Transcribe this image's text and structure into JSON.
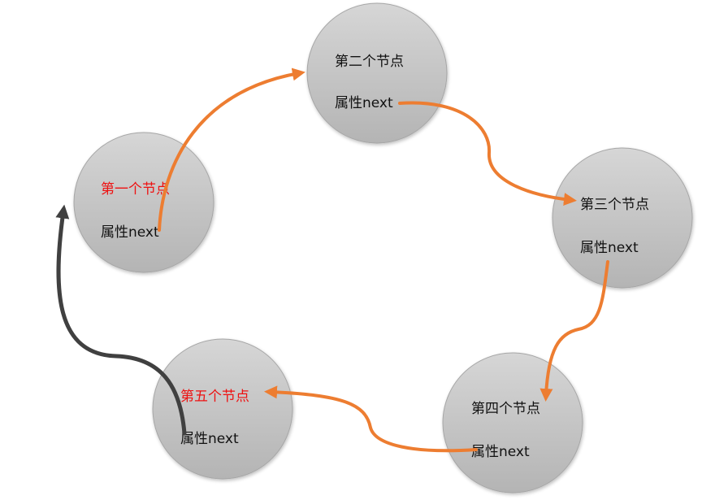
{
  "nodes": [
    {
      "title": "第一个节点",
      "attr": "属性next",
      "title_color": "#ee1111"
    },
    {
      "title": "第二个节点",
      "attr": "属性next",
      "title_color": "#111111"
    },
    {
      "title": "第三个节点",
      "attr": "属性next",
      "title_color": "#111111"
    },
    {
      "title": "第四个节点",
      "attr": "属性next",
      "title_color": "#111111"
    },
    {
      "title": "第五个节点",
      "attr": "属性next",
      "title_color": "#ee1111"
    }
  ],
  "colors": {
    "node_fill_top": "#d4d4d4",
    "node_fill_bottom": "#b3b3b3",
    "node_border": "#a6a6a6",
    "arrow_orange": "#ed7d31",
    "arrow_dark": "#404040",
    "highlight_text": "#ee1111"
  }
}
